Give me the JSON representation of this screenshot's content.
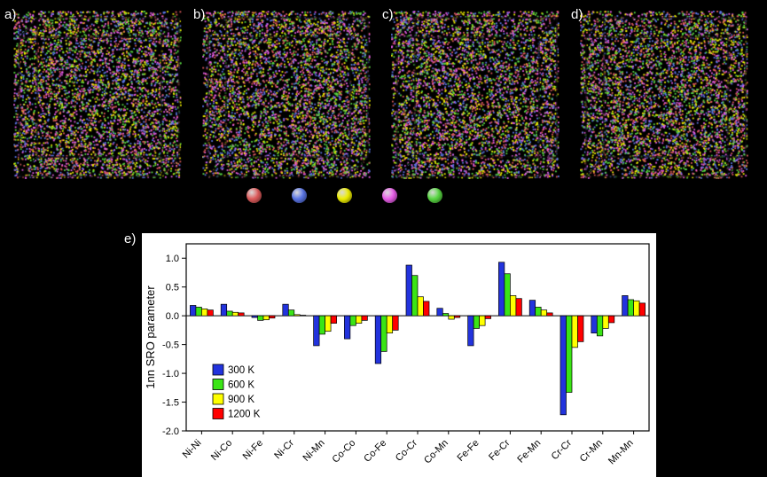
{
  "panels": [
    {
      "label": "a)"
    },
    {
      "label": "b)"
    },
    {
      "label": "c)"
    },
    {
      "label": "d)"
    }
  ],
  "chart_panel_label": "e)",
  "atom_legend": {
    "colors": [
      "#e05c5c",
      "#5b76e8",
      "#f0f000",
      "#ea5fea",
      "#59d943"
    ],
    "sphere_names": [
      "red-atom",
      "blue-atom",
      "yellow-atom",
      "magenta-atom",
      "green-atom"
    ]
  },
  "chart_data": {
    "type": "bar",
    "title": "",
    "xlabel": "",
    "ylabel": "1nn SRO parameter",
    "ylim": [
      -2.0,
      1.25
    ],
    "yticks": [
      1.0,
      0.5,
      0.0,
      -0.5,
      -1.0,
      -1.5,
      -2.0
    ],
    "grid": false,
    "legend_position": "lower-left",
    "categories": [
      "Ni-Ni",
      "Ni-Co",
      "Ni-Fe",
      "Ni-Cr",
      "Ni-Mn",
      "Co-Co",
      "Co-Fe",
      "Co-Cr",
      "Co-Mn",
      "Fe-Fe",
      "Fe-Cr",
      "Fe-Mn",
      "Cr-Cr",
      "Cr-Mn",
      "Mn-Mn"
    ],
    "series": [
      {
        "name": "300 K",
        "color": "#2233dd",
        "values": [
          0.18,
          0.2,
          -0.03,
          0.2,
          -0.52,
          -0.4,
          -0.83,
          0.88,
          0.13,
          -0.52,
          0.93,
          0.27,
          -1.72,
          -0.3,
          0.35
        ]
      },
      {
        "name": "600 K",
        "color": "#3ae515",
        "values": [
          0.15,
          0.08,
          -0.08,
          0.1,
          -0.32,
          -0.17,
          -0.62,
          0.7,
          0.04,
          -0.22,
          0.73,
          0.15,
          -1.33,
          -0.35,
          0.28
        ]
      },
      {
        "name": "900 K",
        "color": "#ffff00",
        "values": [
          0.12,
          0.06,
          -0.07,
          0.02,
          -0.27,
          -0.13,
          -0.3,
          0.33,
          -0.06,
          -0.17,
          0.35,
          0.1,
          -0.55,
          -0.22,
          0.26
        ]
      },
      {
        "name": "1200 K",
        "color": "#ff0000",
        "values": [
          0.1,
          0.05,
          -0.04,
          0.01,
          -0.13,
          -0.08,
          -0.25,
          0.25,
          -0.03,
          -0.05,
          0.3,
          0.05,
          -0.45,
          -0.12,
          0.22
        ]
      }
    ]
  }
}
